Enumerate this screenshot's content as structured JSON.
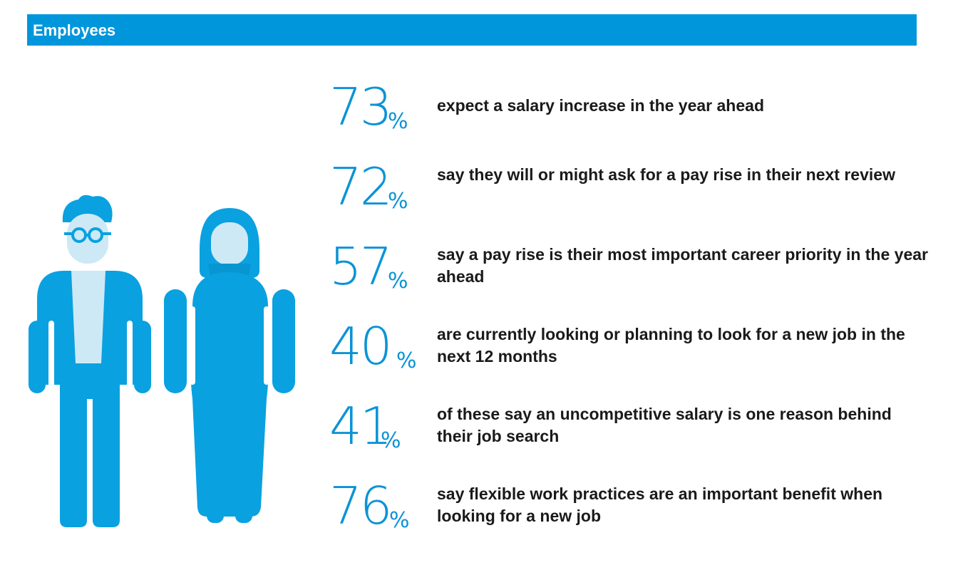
{
  "header": {
    "title": "Employees"
  },
  "colors": {
    "brand_blue": "#0096db",
    "figure_blue": "#0aa1e0",
    "figure_light": "#cde9f6"
  },
  "icons": [
    "man-figure-icon",
    "woman-figure-icon"
  ],
  "stats": [
    {
      "value": "73",
      "unit": "%",
      "text": "expect a salary increase in the year ahead"
    },
    {
      "value": "72",
      "unit": "%",
      "text": "say they will or might ask for a pay rise in their next review"
    },
    {
      "value": "57",
      "unit": "%",
      "text": "say a pay rise is their most important career priority in the year ahead"
    },
    {
      "value": "40",
      "unit": "%",
      "text": "are currently looking or planning to look for a new job in the next 12 months"
    },
    {
      "value": "41",
      "unit": "%",
      "text": "of these say an uncompetitive salary is one reason behind their job search"
    },
    {
      "value": "76",
      "unit": "%",
      "text": "say flexible work practices are an important benefit when looking for a new job"
    }
  ]
}
